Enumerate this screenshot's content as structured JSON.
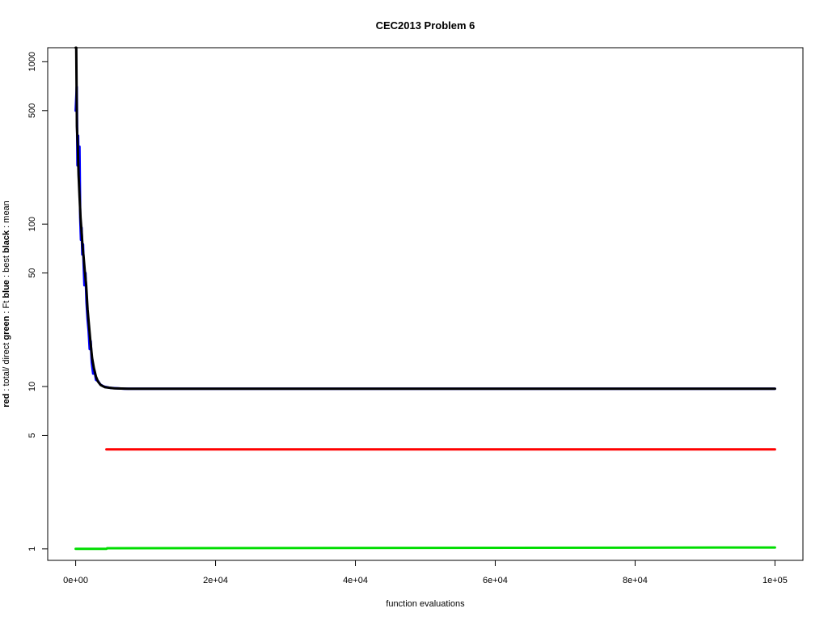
{
  "chart_data": {
    "type": "line",
    "title": "CEC2013 Problem  6",
    "xlabel": "function evaluations",
    "ylabel_parts": [
      {
        "text": "red",
        "bold": true
      },
      {
        "text": " : total/ direct ",
        "bold": false
      },
      {
        "text": "green",
        "bold": true
      },
      {
        "text": " : Ft ",
        "bold": false
      },
      {
        "text": "blue",
        "bold": true
      },
      {
        "text": " : best ",
        "bold": false
      },
      {
        "text": "black",
        "bold": true
      },
      {
        "text": " : mean",
        "bold": false
      }
    ],
    "x_scale": "linear",
    "y_scale": "log",
    "xlim": [
      -4000,
      104000
    ],
    "ylim": [
      0.85,
      1220
    ],
    "x_ticks": [
      {
        "value": 0,
        "label": "0e+00"
      },
      {
        "value": 20000,
        "label": "2e+04"
      },
      {
        "value": 40000,
        "label": "4e+04"
      },
      {
        "value": 60000,
        "label": "6e+04"
      },
      {
        "value": 80000,
        "label": "8e+04"
      },
      {
        "value": 100000,
        "label": "1e+05"
      }
    ],
    "y_ticks": [
      {
        "value": 1,
        "label": "1"
      },
      {
        "value": 5,
        "label": "5"
      },
      {
        "value": 10,
        "label": "10"
      },
      {
        "value": 50,
        "label": "50"
      },
      {
        "value": 100,
        "label": "100"
      },
      {
        "value": 500,
        "label": "500"
      },
      {
        "value": 1000,
        "label": "1000"
      }
    ],
    "grid": false,
    "series": [
      {
        "color": "#ff0000",
        "points": [
          [
            4400,
            4.1
          ],
          [
            100000,
            4.1
          ]
        ]
      },
      {
        "color": "#00dd00",
        "points": [
          [
            0,
            1.0
          ],
          [
            4400,
            1.0
          ],
          [
            4500,
            1.01
          ],
          [
            100000,
            1.02
          ]
        ]
      },
      {
        "color": "#0000ff",
        "points": [
          [
            0,
            500
          ],
          [
            150,
            700
          ],
          [
            250,
            230
          ],
          [
            350,
            350
          ],
          [
            450,
            190
          ],
          [
            550,
            300
          ],
          [
            650,
            110
          ],
          [
            750,
            80
          ],
          [
            850,
            95
          ],
          [
            950,
            65
          ],
          [
            1050,
            75
          ],
          [
            1150,
            55
          ],
          [
            1250,
            42
          ],
          [
            1400,
            50
          ],
          [
            1550,
            33
          ],
          [
            1700,
            26
          ],
          [
            1850,
            22
          ],
          [
            2000,
            17
          ],
          [
            2150,
            19
          ],
          [
            2300,
            14
          ],
          [
            2500,
            12
          ],
          [
            2700,
            12.5
          ],
          [
            2900,
            11
          ],
          [
            3200,
            10.8
          ],
          [
            3500,
            10.3
          ],
          [
            4000,
            10.0
          ],
          [
            5000,
            9.8
          ],
          [
            7000,
            9.7
          ],
          [
            100000,
            9.7
          ]
        ]
      },
      {
        "color": "#000000",
        "points": [
          [
            0,
            1220
          ],
          [
            80,
            1220
          ],
          [
            180,
            400
          ],
          [
            300,
            300
          ],
          [
            420,
            200
          ],
          [
            550,
            150
          ],
          [
            700,
            110
          ],
          [
            850,
            90
          ],
          [
            1000,
            72
          ],
          [
            1150,
            62
          ],
          [
            1300,
            52
          ],
          [
            1500,
            42
          ],
          [
            1700,
            30
          ],
          [
            1900,
            24
          ],
          [
            2100,
            19
          ],
          [
            2350,
            15
          ],
          [
            2600,
            13
          ],
          [
            2900,
            11.5
          ],
          [
            3200,
            10.7
          ],
          [
            3600,
            10.2
          ],
          [
            4200,
            9.9
          ],
          [
            5500,
            9.75
          ],
          [
            7500,
            9.7
          ],
          [
            100000,
            9.7
          ]
        ]
      }
    ]
  }
}
